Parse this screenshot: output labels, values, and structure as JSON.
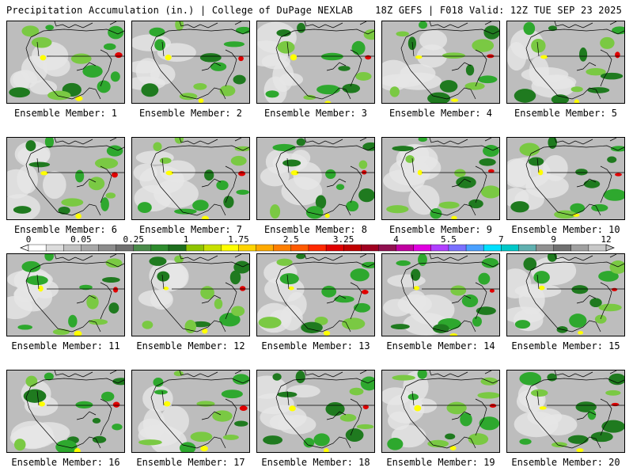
{
  "header": {
    "left_title": "Precipitation Accumulation (in.) | College of DuPage NEXLAB",
    "right_title": "18Z GEFS | F018 Valid: 12Z TUE SEP 23 2025"
  },
  "members": [
    {
      "label": "Ensemble Member: 1"
    },
    {
      "label": "Ensemble Member: 2"
    },
    {
      "label": "Ensemble Member: 3"
    },
    {
      "label": "Ensemble Member: 4"
    },
    {
      "label": "Ensemble Member: 5"
    },
    {
      "label": "Ensemble Member: 6"
    },
    {
      "label": "Ensemble Member: 7"
    },
    {
      "label": "Ensemble Member: 8"
    },
    {
      "label": "Ensemble Member: 9"
    },
    {
      "label": "Ensemble Member: 10"
    },
    {
      "label": "Ensemble Member: 11"
    },
    {
      "label": "Ensemble Member: 12"
    },
    {
      "label": "Ensemble Member: 13"
    },
    {
      "label": "Ensemble Member: 14"
    },
    {
      "label": "Ensemble Member: 15"
    },
    {
      "label": "Ensemble Member: 16"
    },
    {
      "label": "Ensemble Member: 17"
    },
    {
      "label": "Ensemble Member: 18"
    },
    {
      "label": "Ensemble Member: 19"
    },
    {
      "label": "Ensemble Member: 20"
    }
  ],
  "colorbar": {
    "tick_labels": [
      "0",
      "0.05",
      "0.25",
      "1",
      "1.75",
      "2.5",
      "3.25",
      "4",
      "5.5",
      "7",
      "9",
      "12"
    ],
    "colors": [
      "#ffffff",
      "#dcdcdc",
      "#c2c2c2",
      "#a8a8a8",
      "#8c8c8c",
      "#707070",
      "#4a8a4a",
      "#2e8b2e",
      "#1e6e1e",
      "#8fc400",
      "#c8e000",
      "#ffff00",
      "#ffd400",
      "#ffaa00",
      "#ff7f00",
      "#ff5a00",
      "#ff2a00",
      "#e00000",
      "#c00000",
      "#a00020",
      "#901050",
      "#c000a0",
      "#e000e0",
      "#b040ff",
      "#7a70ff",
      "#4aa0ff",
      "#00e0ff",
      "#00c8c8",
      "#60b0b0",
      "#909090",
      "#707070",
      "#a0a0a0",
      "#c8c8c8"
    ]
  },
  "palette": {
    "land": "#bdbdbd",
    "light_precip": "#e6e6e6",
    "green_dark": "#1f7a1f",
    "green_mid": "#2ea82e",
    "green_light": "#7ac943",
    "yellow": "#ffff00",
    "red": "#e00000",
    "map_lines": "#000000"
  }
}
